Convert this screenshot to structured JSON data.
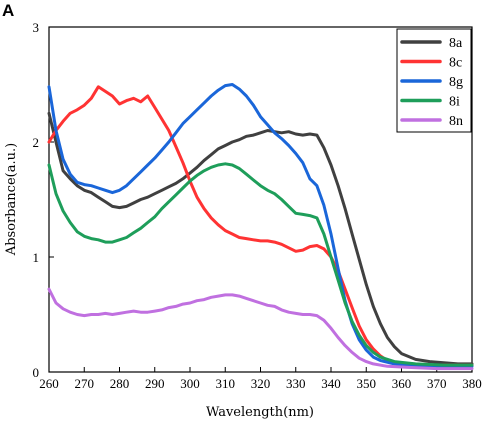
{
  "panel_label": "A",
  "chart_data": {
    "type": "line",
    "title": "",
    "xlabel": "Wavelength(nm)",
    "ylabel": "Absorbance(a.u.)",
    "xlim": [
      260,
      380
    ],
    "ylim": [
      0,
      3
    ],
    "x_ticks": [
      "260",
      "270",
      "280",
      "290",
      "300",
      "310",
      "320",
      "330",
      "340",
      "350",
      "360",
      "370",
      "380"
    ],
    "y_ticks": [
      "0",
      "1",
      "2",
      "3"
    ],
    "grid": false,
    "legend_position": "top-right",
    "series": [
      {
        "name": "8a",
        "color": "#404040",
        "points": [
          [
            260,
            2.25
          ],
          [
            262,
            2.0
          ],
          [
            264,
            1.75
          ],
          [
            266,
            1.68
          ],
          [
            268,
            1.62
          ],
          [
            270,
            1.58
          ],
          [
            272,
            1.56
          ],
          [
            274,
            1.52
          ],
          [
            276,
            1.48
          ],
          [
            278,
            1.44
          ],
          [
            280,
            1.43
          ],
          [
            282,
            1.44
          ],
          [
            284,
            1.47
          ],
          [
            286,
            1.5
          ],
          [
            288,
            1.52
          ],
          [
            290,
            1.55
          ],
          [
            292,
            1.58
          ],
          [
            294,
            1.61
          ],
          [
            296,
            1.64
          ],
          [
            298,
            1.68
          ],
          [
            300,
            1.73
          ],
          [
            302,
            1.78
          ],
          [
            304,
            1.84
          ],
          [
            306,
            1.89
          ],
          [
            308,
            1.94
          ],
          [
            310,
            1.97
          ],
          [
            312,
            2.0
          ],
          [
            314,
            2.02
          ],
          [
            316,
            2.05
          ],
          [
            318,
            2.06
          ],
          [
            320,
            2.08
          ],
          [
            322,
            2.1
          ],
          [
            324,
            2.09
          ],
          [
            326,
            2.08
          ],
          [
            328,
            2.09
          ],
          [
            330,
            2.07
          ],
          [
            332,
            2.06
          ],
          [
            334,
            2.07
          ],
          [
            336,
            2.06
          ],
          [
            338,
            1.95
          ],
          [
            340,
            1.8
          ],
          [
            342,
            1.62
          ],
          [
            344,
            1.42
          ],
          [
            346,
            1.2
          ],
          [
            348,
            0.98
          ],
          [
            350,
            0.76
          ],
          [
            352,
            0.57
          ],
          [
            354,
            0.42
          ],
          [
            356,
            0.3
          ],
          [
            358,
            0.22
          ],
          [
            360,
            0.16
          ],
          [
            364,
            0.11
          ],
          [
            368,
            0.09
          ],
          [
            372,
            0.08
          ],
          [
            376,
            0.07
          ],
          [
            380,
            0.07
          ]
        ]
      },
      {
        "name": "8c",
        "color": "#ff3333",
        "points": [
          [
            260,
            2.0
          ],
          [
            262,
            2.1
          ],
          [
            264,
            2.18
          ],
          [
            266,
            2.25
          ],
          [
            268,
            2.28
          ],
          [
            270,
            2.32
          ],
          [
            272,
            2.38
          ],
          [
            274,
            2.48
          ],
          [
            276,
            2.44
          ],
          [
            278,
            2.4
          ],
          [
            280,
            2.33
          ],
          [
            282,
            2.36
          ],
          [
            284,
            2.38
          ],
          [
            286,
            2.35
          ],
          [
            288,
            2.4
          ],
          [
            290,
            2.3
          ],
          [
            292,
            2.2
          ],
          [
            294,
            2.1
          ],
          [
            296,
            1.96
          ],
          [
            298,
            1.82
          ],
          [
            300,
            1.66
          ],
          [
            302,
            1.52
          ],
          [
            304,
            1.42
          ],
          [
            306,
            1.34
          ],
          [
            308,
            1.28
          ],
          [
            310,
            1.23
          ],
          [
            312,
            1.2
          ],
          [
            314,
            1.17
          ],
          [
            316,
            1.16
          ],
          [
            318,
            1.15
          ],
          [
            320,
            1.14
          ],
          [
            322,
            1.14
          ],
          [
            324,
            1.13
          ],
          [
            326,
            1.11
          ],
          [
            328,
            1.08
          ],
          [
            330,
            1.05
          ],
          [
            332,
            1.06
          ],
          [
            334,
            1.09
          ],
          [
            336,
            1.1
          ],
          [
            338,
            1.07
          ],
          [
            340,
            1.0
          ],
          [
            342,
            0.88
          ],
          [
            344,
            0.72
          ],
          [
            346,
            0.56
          ],
          [
            348,
            0.4
          ],
          [
            350,
            0.28
          ],
          [
            352,
            0.2
          ],
          [
            354,
            0.14
          ],
          [
            356,
            0.1
          ],
          [
            360,
            0.07
          ],
          [
            366,
            0.06
          ],
          [
            372,
            0.06
          ],
          [
            380,
            0.06
          ]
        ]
      },
      {
        "name": "8g",
        "color": "#1a66d9",
        "points": [
          [
            260,
            2.48
          ],
          [
            262,
            2.1
          ],
          [
            264,
            1.85
          ],
          [
            266,
            1.72
          ],
          [
            268,
            1.65
          ],
          [
            270,
            1.63
          ],
          [
            272,
            1.62
          ],
          [
            274,
            1.6
          ],
          [
            276,
            1.58
          ],
          [
            278,
            1.56
          ],
          [
            280,
            1.58
          ],
          [
            282,
            1.62
          ],
          [
            284,
            1.68
          ],
          [
            286,
            1.74
          ],
          [
            288,
            1.8
          ],
          [
            290,
            1.86
          ],
          [
            292,
            1.93
          ],
          [
            294,
            2.0
          ],
          [
            296,
            2.08
          ],
          [
            298,
            2.16
          ],
          [
            300,
            2.22
          ],
          [
            302,
            2.28
          ],
          [
            304,
            2.34
          ],
          [
            306,
            2.4
          ],
          [
            308,
            2.45
          ],
          [
            310,
            2.49
          ],
          [
            312,
            2.5
          ],
          [
            314,
            2.46
          ],
          [
            316,
            2.4
          ],
          [
            318,
            2.32
          ],
          [
            320,
            2.22
          ],
          [
            322,
            2.15
          ],
          [
            324,
            2.08
          ],
          [
            326,
            2.03
          ],
          [
            328,
            1.97
          ],
          [
            330,
            1.9
          ],
          [
            332,
            1.82
          ],
          [
            334,
            1.68
          ],
          [
            336,
            1.62
          ],
          [
            338,
            1.45
          ],
          [
            340,
            1.2
          ],
          [
            342,
            0.9
          ],
          [
            344,
            0.62
          ],
          [
            346,
            0.42
          ],
          [
            348,
            0.28
          ],
          [
            350,
            0.19
          ],
          [
            352,
            0.13
          ],
          [
            354,
            0.1
          ],
          [
            358,
            0.07
          ],
          [
            364,
            0.06
          ],
          [
            372,
            0.05
          ],
          [
            380,
            0.05
          ]
        ]
      },
      {
        "name": "8i",
        "color": "#1e9e5a",
        "points": [
          [
            260,
            1.8
          ],
          [
            262,
            1.55
          ],
          [
            264,
            1.4
          ],
          [
            266,
            1.3
          ],
          [
            268,
            1.22
          ],
          [
            270,
            1.18
          ],
          [
            272,
            1.16
          ],
          [
            274,
            1.15
          ],
          [
            276,
            1.13
          ],
          [
            278,
            1.13
          ],
          [
            280,
            1.15
          ],
          [
            282,
            1.17
          ],
          [
            284,
            1.21
          ],
          [
            286,
            1.25
          ],
          [
            288,
            1.3
          ],
          [
            290,
            1.35
          ],
          [
            292,
            1.42
          ],
          [
            294,
            1.48
          ],
          [
            296,
            1.54
          ],
          [
            298,
            1.6
          ],
          [
            300,
            1.66
          ],
          [
            302,
            1.71
          ],
          [
            304,
            1.75
          ],
          [
            306,
            1.78
          ],
          [
            308,
            1.8
          ],
          [
            310,
            1.81
          ],
          [
            312,
            1.8
          ],
          [
            314,
            1.77
          ],
          [
            316,
            1.72
          ],
          [
            318,
            1.67
          ],
          [
            320,
            1.62
          ],
          [
            322,
            1.58
          ],
          [
            324,
            1.55
          ],
          [
            326,
            1.5
          ],
          [
            328,
            1.44
          ],
          [
            330,
            1.38
          ],
          [
            332,
            1.37
          ],
          [
            334,
            1.36
          ],
          [
            336,
            1.34
          ],
          [
            338,
            1.2
          ],
          [
            340,
            1.0
          ],
          [
            342,
            0.8
          ],
          [
            344,
            0.6
          ],
          [
            346,
            0.44
          ],
          [
            348,
            0.32
          ],
          [
            350,
            0.23
          ],
          [
            352,
            0.17
          ],
          [
            354,
            0.13
          ],
          [
            358,
            0.09
          ],
          [
            364,
            0.07
          ],
          [
            372,
            0.06
          ],
          [
            380,
            0.06
          ]
        ]
      },
      {
        "name": "8n",
        "color": "#c070e0",
        "points": [
          [
            260,
            0.72
          ],
          [
            262,
            0.6
          ],
          [
            264,
            0.55
          ],
          [
            266,
            0.52
          ],
          [
            268,
            0.5
          ],
          [
            270,
            0.49
          ],
          [
            272,
            0.5
          ],
          [
            274,
            0.5
          ],
          [
            276,
            0.51
          ],
          [
            278,
            0.5
          ],
          [
            280,
            0.51
          ],
          [
            282,
            0.52
          ],
          [
            284,
            0.53
          ],
          [
            286,
            0.52
          ],
          [
            288,
            0.52
          ],
          [
            290,
            0.53
          ],
          [
            292,
            0.54
          ],
          [
            294,
            0.56
          ],
          [
            296,
            0.57
          ],
          [
            298,
            0.59
          ],
          [
            300,
            0.6
          ],
          [
            302,
            0.62
          ],
          [
            304,
            0.63
          ],
          [
            306,
            0.65
          ],
          [
            308,
            0.66
          ],
          [
            310,
            0.67
          ],
          [
            312,
            0.67
          ],
          [
            314,
            0.66
          ],
          [
            316,
            0.64
          ],
          [
            318,
            0.62
          ],
          [
            320,
            0.6
          ],
          [
            322,
            0.58
          ],
          [
            324,
            0.57
          ],
          [
            326,
            0.54
          ],
          [
            328,
            0.52
          ],
          [
            330,
            0.51
          ],
          [
            332,
            0.5
          ],
          [
            334,
            0.5
          ],
          [
            336,
            0.49
          ],
          [
            338,
            0.45
          ],
          [
            340,
            0.38
          ],
          [
            342,
            0.3
          ],
          [
            344,
            0.23
          ],
          [
            346,
            0.17
          ],
          [
            348,
            0.12
          ],
          [
            350,
            0.09
          ],
          [
            352,
            0.07
          ],
          [
            356,
            0.05
          ],
          [
            362,
            0.04
          ],
          [
            370,
            0.03
          ],
          [
            380,
            0.03
          ]
        ]
      }
    ]
  }
}
